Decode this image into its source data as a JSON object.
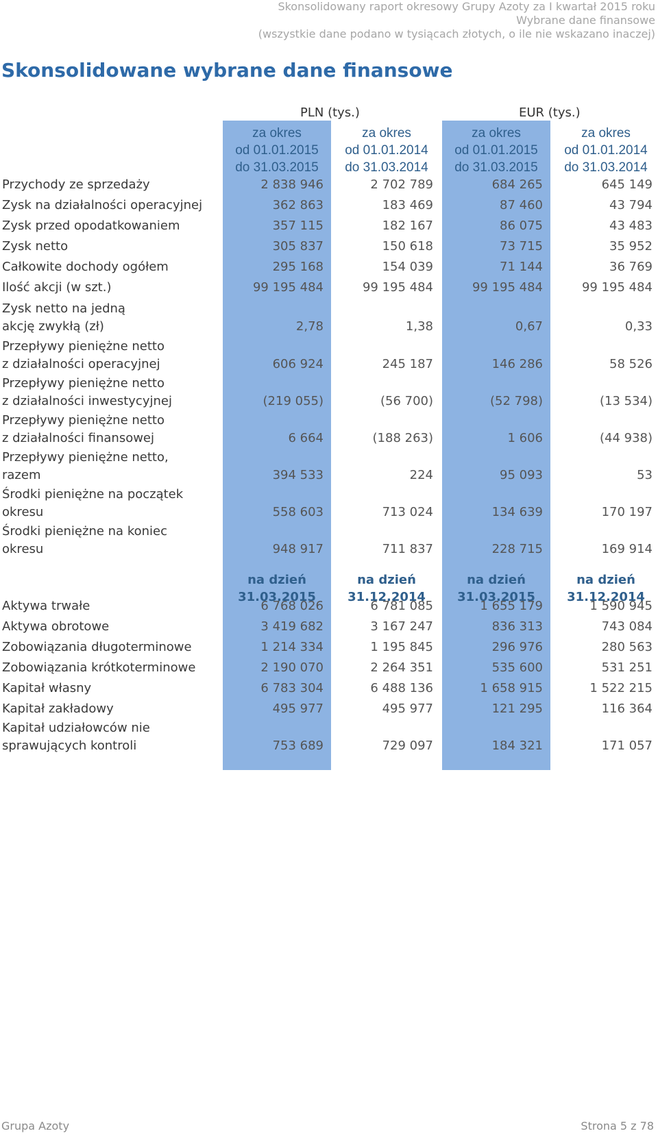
{
  "header": {
    "line1": "Skonsolidowany raport okresowy Grupy Azoty za I kwartał 2015 roku",
    "line2": "Wybrane dane finansowe",
    "line3": "(wszystkie dane podano w tysiącach złotych, o ile nie wskazano inaczej)"
  },
  "title": "Skonsolidowane wybrane dane finansowe",
  "currencies": {
    "pln": "PLN (tys.)",
    "eur": "EUR (tys.)"
  },
  "period_headers": [
    {
      "l1": "za okres",
      "l2": "od 01.01.2015",
      "l3": "do 31.03.2015"
    },
    {
      "l1": "za okres",
      "l2": "od 01.01.2014",
      "l3": "do 31.03.2014"
    },
    {
      "l1": "za okres",
      "l2": "od 01.01.2015",
      "l3": "do 31.03.2015"
    },
    {
      "l1": "za okres",
      "l2": "od 01.01.2014",
      "l3": "do 31.03.2014"
    }
  ],
  "date_headers": [
    {
      "l1": "na dzień",
      "l2": "31.03.2015"
    },
    {
      "l1": "na dzień",
      "l2": "31.12.2014"
    },
    {
      "l1": "na dzień",
      "l2": "31.03.2015"
    },
    {
      "l1": "na dzień",
      "l2": "31.12.2014"
    }
  ],
  "rows_period": [
    {
      "label": [
        "Przychody ze sprzedaży"
      ],
      "values": [
        "2 838 946",
        "2 702 789",
        "684 265",
        "645 149"
      ]
    },
    {
      "label": [
        "Zysk na działalności operacyjnej"
      ],
      "values": [
        "362 863",
        "183 469",
        "87 460",
        "43 794"
      ]
    },
    {
      "label": [
        "Zysk przed opodatkowaniem"
      ],
      "values": [
        "357 115",
        "182 167",
        "86 075",
        "43 483"
      ]
    },
    {
      "label": [
        "Zysk netto"
      ],
      "values": [
        "305 837",
        "150 618",
        "73 715",
        "35 952"
      ]
    },
    {
      "label": [
        "Całkowite dochody ogółem"
      ],
      "values": [
        "295 168",
        "154 039",
        "71 144",
        "36 769"
      ]
    },
    {
      "label": [
        "Ilość akcji (w szt.)"
      ],
      "values": [
        "99 195 484",
        "99 195 484",
        "99 195 484",
        "99 195 484"
      ]
    },
    {
      "label": [
        "Zysk netto na jedną",
        "akcję zwykłą (zł)"
      ],
      "values": [
        "2,78",
        "1,38",
        "0,67",
        "0,33"
      ]
    },
    {
      "label": [
        "Przepływy pieniężne netto",
        "z działalności operacyjnej"
      ],
      "values": [
        "606 924",
        "245 187",
        "146 286",
        "58 526"
      ]
    },
    {
      "label": [
        "Przepływy pieniężne netto",
        "z działalności inwestycyjnej"
      ],
      "values": [
        "(219 055)",
        "(56 700)",
        "(52 798)",
        "(13 534)"
      ]
    },
    {
      "label": [
        "Przepływy pieniężne netto",
        "z działalności finansowej"
      ],
      "values": [
        "6 664",
        "(188 263)",
        "1 606",
        "(44 938)"
      ]
    },
    {
      "label": [
        "Przepływy pieniężne netto,",
        "razem"
      ],
      "values": [
        "394 533",
        "224",
        "95 093",
        "53"
      ]
    },
    {
      "label": [
        "Środki pieniężne na początek",
        "okresu"
      ],
      "values": [
        "558 603",
        "713 024",
        "134 639",
        "170 197"
      ]
    },
    {
      "label": [
        "Środki pieniężne na koniec",
        "okresu"
      ],
      "values": [
        "948 917",
        "711 837",
        "228 715",
        "169 914"
      ]
    }
  ],
  "rows_date": [
    {
      "label": [
        "Aktywa trwałe"
      ],
      "values": [
        "6 768 026",
        "6 781 085",
        "1 655 179",
        "1 590 945"
      ]
    },
    {
      "label": [
        "Aktywa obrotowe"
      ],
      "values": [
        "3 419 682",
        "3 167 247",
        "836 313",
        "743 084"
      ]
    },
    {
      "label": [
        "Zobowiązania długoterminowe"
      ],
      "values": [
        "1 214 334",
        "1 195 845",
        "296 976",
        "280 563"
      ]
    },
    {
      "label": [
        "Zobowiązania krótkoterminowe"
      ],
      "values": [
        "2 190 070",
        "2 264 351",
        "535 600",
        "531 251"
      ]
    },
    {
      "label": [
        "Kapitał własny"
      ],
      "values": [
        "6 783 304",
        "6 488 136",
        "1 658 915",
        "1 522 215"
      ]
    },
    {
      "label": [
        "Kapitał zakładowy"
      ],
      "values": [
        "495 977",
        "495 977",
        "121 295",
        "116 364"
      ]
    },
    {
      "label": [
        "Kapitał udziałowców nie",
        "sprawujących kontroli"
      ],
      "values": [
        "753 689",
        "729 097",
        "184 321",
        "171 057"
      ]
    }
  ],
  "footer": {
    "left": "Grupa Azoty",
    "right": "Strona 5 z 78"
  },
  "colors": {
    "highlight": "#8db3e2",
    "title": "#2e6aa8",
    "header_text": "#2f5f8c"
  }
}
